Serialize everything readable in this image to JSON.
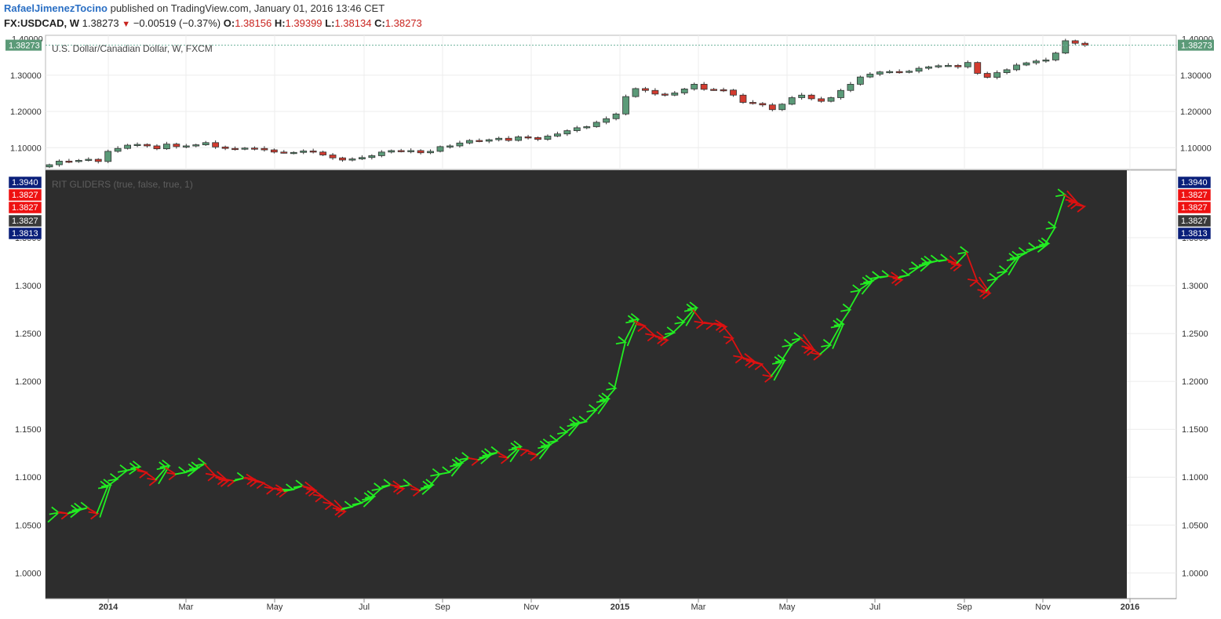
{
  "header": {
    "author": "RafaelJimenezTocino",
    "published": "published on TradingView.com, January 01, 2016 13:46 CET",
    "symbol": "FX:USDCAD, W",
    "last": "1.38273",
    "change": "−0.00519 (−0.37%)",
    "open_label": "O:",
    "open": "1.38156",
    "high_label": "H:",
    "high": "1.39399",
    "low_label": "L:",
    "low": "1.38134",
    "close_label": "C:",
    "close": "1.38273"
  },
  "colors": {
    "up": "#5b9a78",
    "down": "#d33b2f",
    "panel_bg": "#2d2d2d",
    "glider_up": "#22ee22",
    "glider_down": "#dd1111",
    "navy": "#0a1f7a",
    "red_tag": "#ee1111"
  },
  "chart_data": [
    {
      "type": "candlestick",
      "title": "U.S. Dollar/Canadian Dollar, W, FXCM",
      "ylim": [
        1.04,
        1.41
      ],
      "yticks": [
        "1.10000",
        "1.20000",
        "1.30000"
      ],
      "top_tick": "1.40000",
      "last_label": "1.38273",
      "last_value": 1.38273,
      "x_labels": [
        "2014",
        "Mar",
        "May",
        "Jul",
        "Sep",
        "Nov",
        "2015",
        "Mar",
        "May",
        "Jul",
        "Sep",
        "Nov",
        "2016"
      ],
      "closes": [
        1.053,
        1.063,
        1.062,
        1.065,
        1.068,
        1.062,
        1.09,
        1.098,
        1.107,
        1.109,
        1.105,
        1.097,
        1.11,
        1.103,
        1.105,
        1.108,
        1.114,
        1.102,
        1.098,
        1.096,
        1.099,
        1.098,
        1.094,
        1.088,
        1.087,
        1.087,
        1.091,
        1.088,
        1.08,
        1.072,
        1.066,
        1.069,
        1.073,
        1.078,
        1.088,
        1.092,
        1.09,
        1.092,
        1.086,
        1.09,
        1.103,
        1.105,
        1.113,
        1.12,
        1.118,
        1.122,
        1.126,
        1.12,
        1.13,
        1.128,
        1.123,
        1.132,
        1.138,
        1.147,
        1.155,
        1.158,
        1.17,
        1.18,
        1.193,
        1.241,
        1.263,
        1.258,
        1.248,
        1.245,
        1.251,
        1.262,
        1.275,
        1.261,
        1.26,
        1.259,
        1.245,
        1.225,
        1.222,
        1.218,
        1.205,
        1.22,
        1.238,
        1.245,
        1.235,
        1.228,
        1.238,
        1.258,
        1.275,
        1.295,
        1.303,
        1.309,
        1.31,
        1.308,
        1.311,
        1.319,
        1.323,
        1.326,
        1.327,
        1.323,
        1.335,
        1.305,
        1.294,
        1.307,
        1.315,
        1.328,
        1.334,
        1.339,
        1.342,
        1.361,
        1.395,
        1.388,
        1.3827
      ]
    },
    {
      "type": "line",
      "title": "RIT GLIDERS (true, false, true, 1)",
      "ylim": [
        0.9732,
        1.4205
      ],
      "yticks": [
        "1.3500",
        "1.3000",
        "1.2500",
        "1.2000",
        "1.1500",
        "1.1000",
        "1.0500",
        "1.0000"
      ],
      "tags": [
        {
          "text": "1.3940",
          "value": 1.394,
          "color": "navy"
        },
        {
          "text": "1.3827",
          "value": 1.3827,
          "color": "red"
        },
        {
          "text": "1.3827",
          "value": 1.3827,
          "color": "red"
        },
        {
          "text": "1.3827",
          "value": 1.3827,
          "color": "dark"
        },
        {
          "text": "1.3813",
          "value": 1.3813,
          "color": "navy"
        }
      ]
    }
  ]
}
